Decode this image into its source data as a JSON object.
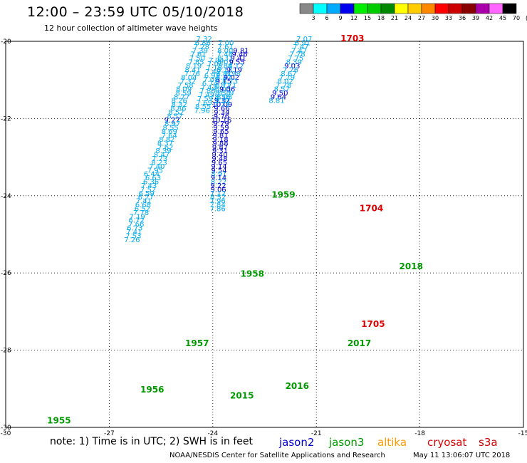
{
  "header": {
    "title": "12:00 – 23:59 UTC 05/10/2018",
    "subtitle": "12 hour collection of altimeter wave heights"
  },
  "footer": {
    "note": "note: 1) Time is in UTC; 2) SWH is in feet",
    "credit": "NOAA/NESDIS Center for Satellite Applications and Research",
    "timestamp": "May 11 13:06:07 UTC 2018"
  },
  "legend": [
    {
      "name": "jason2",
      "color": "#0000cc"
    },
    {
      "name": "jason3",
      "color": "#009900"
    },
    {
      "name": "altika",
      "color": "#ff9900"
    },
    {
      "name": "cryosat",
      "color": "#dd0000"
    },
    {
      "name": "s3a",
      "color": "#cc0000"
    }
  ],
  "colorbar": {
    "labels": [
      "3",
      "6",
      "9",
      "12",
      "15",
      "18",
      "21",
      "24",
      "27",
      "30",
      "33",
      "36",
      "39",
      "42",
      "45",
      "70",
      "(ft)"
    ],
    "colors": [
      "#888888",
      "#00ffff",
      "#00aaff",
      "#0000ee",
      "#00ee00",
      "#00cc00",
      "#008800",
      "#ffff00",
      "#ffcc00",
      "#ff8800",
      "#ff0000",
      "#cc0000",
      "#880000",
      "#aa00aa",
      "#ff66ff",
      "#000000"
    ]
  },
  "chart_data": {
    "type": "scatter",
    "title": "12:00 – 23:59 UTC 05/10/2018",
    "subtitle": "12 hour collection of altimeter wave heights",
    "xlabel": "",
    "ylabel": "",
    "xlim": [
      -30,
      -15
    ],
    "ylim": [
      -30,
      -20
    ],
    "x_ticks": [
      -30,
      -27,
      -24,
      -21,
      -18,
      -15
    ],
    "y_ticks": [
      -20,
      -22,
      -24,
      -26,
      -28,
      -30
    ],
    "grid": true,
    "units": "ft",
    "tracks": [
      {
        "track_id": "1955",
        "series": "jason3",
        "label_pos": [
          -28.8,
          -29.9
        ],
        "points": [
          [
            -24.25,
            -20.0,
            "7.32"
          ],
          [
            -24.29,
            -20.1,
            "6.86"
          ],
          [
            -24.33,
            -20.2,
            "7.28"
          ],
          [
            -24.37,
            -20.3,
            "7.39"
          ],
          [
            -24.42,
            -20.4,
            "7.61"
          ],
          [
            -24.45,
            -20.5,
            "7.50"
          ],
          [
            -24.48,
            -20.6,
            "7.85"
          ],
          [
            -24.55,
            -20.7,
            "8.19"
          ],
          [
            -24.58,
            -20.8,
            "8.41"
          ],
          [
            -24.6,
            -20.9,
            "7.76"
          ],
          [
            -24.69,
            -21.0,
            "8.04"
          ],
          [
            -24.72,
            -21.1,
            "7.32"
          ],
          [
            -24.79,
            -21.2,
            "7.58"
          ],
          [
            -24.84,
            -21.3,
            "8.09"
          ],
          [
            -24.85,
            -21.4,
            "8.59"
          ],
          [
            -24.9,
            -21.5,
            "8.77"
          ],
          [
            -24.97,
            -21.6,
            "8.26"
          ],
          [
            -24.97,
            -21.7,
            "8.32"
          ],
          [
            -25.0,
            -21.8,
            "8.86"
          ],
          [
            -25.06,
            -21.9,
            "8.52"
          ],
          [
            -25.1,
            -22.0,
            "8.57"
          ],
          [
            -25.18,
            -22.1,
            "9.27"
          ],
          [
            -25.17,
            -22.2,
            "8.97"
          ],
          [
            -25.22,
            -22.3,
            "8.55"
          ],
          [
            -25.26,
            -22.4,
            "8.69"
          ],
          [
            -25.26,
            -22.5,
            "7.64"
          ],
          [
            -25.33,
            -22.6,
            "8.82"
          ],
          [
            -25.38,
            -22.7,
            "8.37"
          ],
          [
            -25.37,
            -22.8,
            "7.62"
          ],
          [
            -25.43,
            -22.9,
            "8.39"
          ],
          [
            -25.48,
            -23.0,
            "8.47"
          ],
          [
            -25.54,
            -23.1,
            "7.73"
          ],
          [
            -25.55,
            -23.2,
            "8.23"
          ],
          [
            -25.62,
            -23.3,
            "7.40"
          ],
          [
            -25.67,
            -23.4,
            "7.95"
          ],
          [
            -25.77,
            -23.5,
            "6.44"
          ],
          [
            -25.73,
            -23.6,
            "6.63"
          ],
          [
            -25.79,
            -23.7,
            "6.36"
          ],
          [
            -25.85,
            -23.8,
            "7.43"
          ],
          [
            -25.87,
            -23.9,
            "7.52"
          ],
          [
            -25.92,
            -24.0,
            "6.59"
          ],
          [
            -25.94,
            -24.1,
            "6.77"
          ],
          [
            -26.0,
            -24.2,
            "7.41"
          ],
          [
            -26.02,
            -24.3,
            "6.68"
          ],
          [
            -26.04,
            -24.4,
            "6.52"
          ],
          [
            -26.08,
            -24.5,
            "7.78"
          ],
          [
            -26.19,
            -24.6,
            "7.19"
          ],
          [
            -26.21,
            -24.7,
            "6.72"
          ],
          [
            -26.22,
            -24.8,
            "7.66"
          ],
          [
            -26.26,
            -24.9,
            "6.73"
          ],
          [
            -26.28,
            -25.0,
            "7.41"
          ],
          [
            -26.3,
            -25.1,
            "7.53"
          ],
          [
            -26.34,
            -25.2,
            "7.26"
          ]
        ]
      },
      {
        "track_id": "1956",
        "series": "jason3",
        "label_pos": [
          -26.1,
          -29.1
        ],
        "points": []
      },
      {
        "track_id": "1957",
        "series": "jason3",
        "label_pos": [
          -24.8,
          -27.9
        ],
        "points": []
      },
      {
        "track_id": "1958",
        "series": "jason3",
        "label_pos": [
          -23.2,
          -26.1
        ],
        "points": []
      },
      {
        "track_id": "1959",
        "series": "jason3",
        "label_pos": [
          -22.3,
          -24.05
        ],
        "points": [
          [
            -23.62,
            -20.1,
            "7.00"
          ],
          [
            -23.63,
            -20.2,
            "7.61"
          ],
          [
            -23.64,
            -20.3,
            "8.00"
          ],
          [
            -23.65,
            -20.4,
            "7.48"
          ],
          [
            -23.64,
            -20.5,
            "8.31"
          ],
          [
            -23.65,
            -20.6,
            "8.01"
          ],
          [
            -23.66,
            -20.7,
            "7.84"
          ],
          [
            -23.66,
            -20.8,
            "8.13"
          ],
          [
            -23.68,
            -20.9,
            "8.81"
          ],
          [
            -23.68,
            -21.0,
            "8.47"
          ],
          [
            -23.69,
            -21.1,
            "9.15"
          ],
          [
            -23.7,
            -21.2,
            "8.71"
          ],
          [
            -23.71,
            -21.3,
            "8.03"
          ],
          [
            -23.71,
            -21.4,
            "8.53"
          ],
          [
            -23.72,
            -21.5,
            "8.56"
          ],
          [
            -23.73,
            -21.6,
            "9.37"
          ],
          [
            -23.73,
            -21.7,
            "10.09"
          ],
          [
            -23.74,
            -21.8,
            "9.66"
          ],
          [
            -23.74,
            -21.9,
            "9.34"
          ],
          [
            -23.75,
            -22.0,
            "9.76"
          ],
          [
            -23.75,
            -22.1,
            "10.16"
          ],
          [
            -23.76,
            -22.2,
            "9.79"
          ],
          [
            -23.76,
            -22.3,
            "9.59"
          ],
          [
            -23.76,
            -22.4,
            "9.65"
          ],
          [
            -23.78,
            -22.5,
            "9.81"
          ],
          [
            -23.78,
            -22.6,
            "9.18"
          ],
          [
            -23.78,
            -22.7,
            "9.88"
          ],
          [
            -23.79,
            -22.8,
            "9.87"
          ],
          [
            -23.79,
            -22.9,
            "9.31"
          ],
          [
            -23.8,
            -23.0,
            "9.40"
          ],
          [
            -23.8,
            -23.1,
            "9.48"
          ],
          [
            -23.81,
            -23.2,
            "9.65"
          ],
          [
            -23.82,
            -23.3,
            "9.14"
          ],
          [
            -23.82,
            -23.4,
            "9.54"
          ],
          [
            -23.82,
            -23.5,
            "8.91"
          ],
          [
            -23.83,
            -23.6,
            "9.14"
          ],
          [
            -23.83,
            -23.7,
            "8.22"
          ],
          [
            -23.84,
            -23.8,
            "9.22"
          ],
          [
            -23.84,
            -23.9,
            "9.06"
          ],
          [
            -23.85,
            -24.0,
            "7.12"
          ],
          [
            -23.85,
            -24.1,
            "8.52"
          ],
          [
            -23.86,
            -24.2,
            "7.96"
          ],
          [
            -23.86,
            -24.3,
            "7.84"
          ],
          [
            -23.86,
            -24.4,
            "7.86"
          ]
        ]
      },
      {
        "track_id": "2015",
        "series": "jason3",
        "label_pos": [
          -23.5,
          -29.25
        ],
        "points": []
      },
      {
        "track_id": "2016",
        "series": "jason3",
        "label_pos": [
          -21.9,
          -29.0
        ],
        "points": [
          [
            -23.9,
            -20.55,
            "7.04"
          ],
          [
            -23.93,
            -20.65,
            "7.01"
          ],
          [
            -23.96,
            -20.75,
            "7.18"
          ],
          [
            -23.99,
            -20.85,
            "7.42"
          ],
          [
            -24.02,
            -20.95,
            "6.91"
          ],
          [
            -24.05,
            -21.05,
            "7.08"
          ],
          [
            -24.08,
            -21.15,
            "6.74"
          ],
          [
            -24.12,
            -21.25,
            "7.43"
          ],
          [
            -24.15,
            -21.35,
            "7.86"
          ],
          [
            -24.18,
            -21.45,
            "7.49"
          ],
          [
            -24.22,
            -21.55,
            "7.59"
          ],
          [
            -24.25,
            -21.65,
            "7.69"
          ],
          [
            -24.28,
            -21.75,
            "8.55"
          ],
          [
            -24.31,
            -21.85,
            "7.96"
          ]
        ]
      },
      {
        "track_id": "2017",
        "series": "jason3",
        "label_pos": [
          -20.1,
          -27.9
        ],
        "points": [
          [
            -23.18,
            -20.3,
            "9.81"
          ],
          [
            -23.22,
            -20.4,
            "9.46"
          ],
          [
            -23.26,
            -20.5,
            "9.41"
          ],
          [
            -23.3,
            -20.6,
            "9.55"
          ],
          [
            -23.33,
            -20.7,
            "8.12"
          ],
          [
            -23.38,
            -20.8,
            "9.19"
          ],
          [
            -23.42,
            -20.9,
            "8.98"
          ],
          [
            -23.46,
            -21.0,
            "9.02"
          ],
          [
            -23.5,
            -21.1,
            "8.73"
          ],
          [
            -23.54,
            -21.2,
            "8.71"
          ],
          [
            -23.58,
            -21.3,
            "9.06"
          ],
          [
            -23.62,
            -21.4,
            "8.19"
          ],
          [
            -23.66,
            -21.5,
            "8.05"
          ],
          [
            -23.7,
            -21.6,
            "8.01"
          ],
          [
            -23.74,
            -21.7,
            "7.73"
          ]
        ]
      },
      {
        "track_id": "2018",
        "series": "jason3",
        "label_pos": [
          -18.6,
          -25.9
        ],
        "points": [
          [
            -21.35,
            -20.0,
            "7.07"
          ],
          [
            -21.4,
            -20.1,
            "6.91"
          ],
          [
            -21.45,
            -20.2,
            "7.47"
          ],
          [
            -21.5,
            -20.3,
            "7.47"
          ],
          [
            -21.55,
            -20.4,
            "7.78"
          ],
          [
            -21.6,
            -20.5,
            "7.75"
          ],
          [
            -21.65,
            -20.6,
            "8.39"
          ],
          [
            -21.7,
            -20.7,
            "9.03"
          ],
          [
            -21.75,
            -20.8,
            "7.76"
          ],
          [
            -21.8,
            -20.9,
            "8.67"
          ],
          [
            -21.85,
            -21.0,
            "7.79"
          ],
          [
            -21.9,
            -21.1,
            "8.02"
          ],
          [
            -21.95,
            -21.2,
            "7.78"
          ],
          [
            -22.0,
            -21.3,
            "8.57"
          ],
          [
            -22.05,
            -21.4,
            "9.50"
          ],
          [
            -22.1,
            -21.5,
            "9.64"
          ],
          [
            -22.15,
            -21.6,
            "8.81"
          ]
        ]
      },
      {
        "track_id": "1703",
        "series": "cryosat",
        "label_pos": [
          -20.3,
          -20.0
        ],
        "points": []
      },
      {
        "track_id": "1704",
        "series": "cryosat",
        "label_pos": [
          -19.75,
          -24.4
        ],
        "points": []
      },
      {
        "track_id": "1705",
        "series": "cryosat",
        "label_pos": [
          -19.7,
          -27.4
        ],
        "points": []
      }
    ]
  }
}
